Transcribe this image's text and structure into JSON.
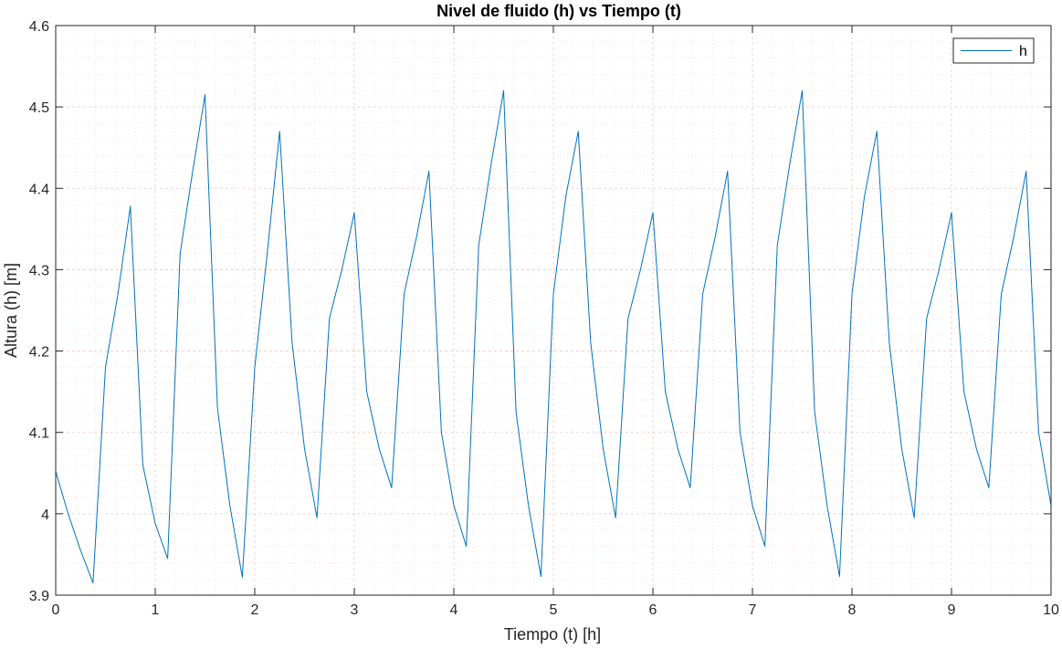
{
  "chart_data": {
    "type": "line",
    "title": "Nivel de fluido (h) vs Tiempo (t)",
    "xlabel": "Tiempo (t) [h]",
    "ylabel": "Altura (h) [m]",
    "xlim": [
      0,
      10
    ],
    "ylim": [
      3.9,
      4.6
    ],
    "xticks": [
      0,
      1,
      2,
      3,
      4,
      5,
      6,
      7,
      8,
      9,
      10
    ],
    "xtick_labels": [
      "0",
      "1",
      "2",
      "3",
      "4",
      "5",
      "6",
      "7",
      "8",
      "9",
      "10"
    ],
    "yticks": [
      3.9,
      4.0,
      4.1,
      4.2,
      4.3,
      4.4,
      4.5,
      4.6
    ],
    "ytick_labels": [
      "3.9",
      "4",
      "4.1",
      "4.2",
      "4.3",
      "4.4",
      "4.5",
      "4.6"
    ],
    "grid": true,
    "minor_grid": true,
    "legend_position": "top-right",
    "series": [
      {
        "name": "h",
        "color": "#0072BD",
        "x": [
          0,
          0.125,
          0.25,
          0.375,
          0.5,
          0.625,
          0.75,
          0.875,
          1.0,
          1.125,
          1.25,
          1.375,
          1.5,
          1.625,
          1.75,
          1.875,
          2.0,
          2.125,
          2.25,
          2.375,
          2.5,
          2.625,
          2.75,
          2.875,
          3.0,
          3.125,
          3.25,
          3.375,
          3.5,
          3.625,
          3.75,
          3.875,
          4.0,
          4.125,
          4.25,
          4.375,
          4.5,
          4.625,
          4.75,
          4.875,
          5.0,
          5.125,
          5.25,
          5.375,
          5.5,
          5.625,
          5.75,
          5.875,
          6.0,
          6.125,
          6.25,
          6.375,
          6.5,
          6.625,
          6.75,
          6.875,
          7.0,
          7.125,
          7.25,
          7.375,
          7.5,
          7.625,
          7.75,
          7.875,
          8.0,
          8.125,
          8.25,
          8.375,
          8.5,
          8.625,
          8.75,
          8.875,
          9.0,
          9.125,
          9.25,
          9.375,
          9.5,
          9.625,
          9.75,
          9.875,
          10.0
        ],
        "values": [
          4.052,
          4.0,
          3.955,
          3.915,
          4.18,
          4.27,
          4.378,
          4.06,
          3.988,
          3.945,
          4.32,
          4.42,
          4.515,
          4.13,
          4.01,
          3.922,
          4.18,
          4.32,
          4.47,
          4.21,
          4.08,
          3.995,
          4.24,
          4.3,
          4.37,
          4.15,
          4.08,
          4.032,
          4.27,
          4.34,
          4.421,
          4.1,
          4.01,
          3.96,
          4.33,
          4.43,
          4.52,
          4.125,
          4.01,
          3.923,
          4.27,
          4.39,
          4.47,
          4.21,
          4.08,
          3.995,
          4.24,
          4.3,
          4.37,
          4.15,
          4.08,
          4.032,
          4.27,
          4.34,
          4.421,
          4.1,
          4.01,
          3.96,
          4.33,
          4.43,
          4.52,
          4.125,
          4.01,
          3.923,
          4.27,
          4.39,
          4.47,
          4.21,
          4.08,
          3.995,
          4.24,
          4.3,
          4.37,
          4.15,
          4.08,
          4.032,
          4.27,
          4.34,
          4.421,
          4.1,
          4.01
        ]
      }
    ]
  }
}
